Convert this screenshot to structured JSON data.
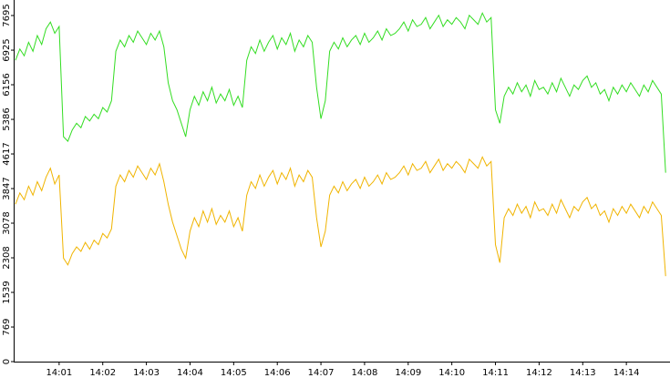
{
  "chart_data": {
    "type": "line",
    "x": [
      0,
      0.1,
      0.2,
      0.3,
      0.4,
      0.5,
      0.6,
      0.7,
      0.8,
      0.9,
      1,
      1.1,
      1.2,
      1.3,
      1.4,
      1.5,
      1.6,
      1.7,
      1.8,
      1.9,
      2,
      2.1,
      2.2,
      2.3,
      2.4,
      2.5,
      2.6,
      2.7,
      2.8,
      2.9,
      3,
      3.1,
      3.2,
      3.3,
      3.4,
      3.5,
      3.6,
      3.7,
      3.8,
      3.9,
      4,
      4.1,
      4.2,
      4.3,
      4.4,
      4.5,
      4.6,
      4.7,
      4.8,
      4.9,
      5,
      5.1,
      5.2,
      5.3,
      5.4,
      5.5,
      5.6,
      5.7,
      5.8,
      5.9,
      6,
      6.1,
      6.2,
      6.3,
      6.4,
      6.5,
      6.6,
      6.7,
      6.8,
      6.9,
      7,
      7.1,
      7.2,
      7.3,
      7.4,
      7.5,
      7.6,
      7.7,
      7.8,
      7.9,
      8,
      8.1,
      8.2,
      8.3,
      8.4,
      8.5,
      8.6,
      8.7,
      8.8,
      8.9,
      9,
      9.1,
      9.2,
      9.3,
      9.4,
      9.5,
      9.6,
      9.7,
      9.8,
      9.9,
      10,
      10.1,
      10.2,
      10.3,
      10.4,
      10.5,
      10.6,
      10.7,
      10.8,
      10.9,
      11,
      11.1,
      11.2,
      11.3,
      11.4,
      11.5,
      11.6,
      11.7,
      11.8,
      11.9,
      12,
      12.1,
      12.2,
      12.3,
      12.4,
      12.5,
      12.6,
      12.7,
      12.8,
      12.9,
      13,
      13.1,
      13.2,
      13.3,
      13.4,
      13.5,
      13.6,
      13.7,
      13.8,
      13.9,
      14,
      14.1,
      14.2,
      14.3,
      14.4,
      14.5,
      14.6,
      14.7,
      14.8,
      14.9
    ],
    "series": [
      {
        "color": "#33dd22",
        "values": [
          6700,
          6950,
          6800,
          7100,
          6900,
          7250,
          7050,
          7400,
          7550,
          7300,
          7450,
          5000,
          4900,
          5150,
          5300,
          5200,
          5450,
          5350,
          5500,
          5400,
          5650,
          5550,
          5800,
          6900,
          7150,
          7000,
          7250,
          7100,
          7350,
          7200,
          7050,
          7300,
          7150,
          7350,
          7000,
          6200,
          5800,
          5600,
          5300,
          5000,
          5600,
          5900,
          5700,
          6000,
          5800,
          6100,
          5750,
          5950,
          5800,
          6050,
          5700,
          5900,
          5650,
          6700,
          7000,
          6850,
          7150,
          6900,
          7100,
          7250,
          6950,
          7200,
          7050,
          7300,
          6900,
          7150,
          7000,
          7250,
          7100,
          6100,
          5400,
          5800,
          6900,
          7100,
          6950,
          7200,
          7000,
          7150,
          7250,
          7050,
          7300,
          7100,
          7200,
          7350,
          7150,
          7400,
          7250,
          7300,
          7400,
          7550,
          7350,
          7600,
          7450,
          7500,
          7650,
          7400,
          7550,
          7700,
          7450,
          7600,
          7500,
          7650,
          7550,
          7400,
          7700,
          7600,
          7500,
          7750,
          7550,
          7650,
          5600,
          5300,
          5900,
          6100,
          5950,
          6200,
          6000,
          6150,
          5900,
          6250,
          6050,
          6100,
          5950,
          6200,
          6000,
          6300,
          6100,
          5900,
          6150,
          6050,
          6250,
          6350,
          6100,
          6200,
          5950,
          6050,
          5800,
          6100,
          5950,
          6150,
          6000,
          6200,
          6050,
          5900,
          6150,
          6000,
          6250,
          6100,
          5950,
          4200
        ]
      },
      {
        "color": "#f0b400",
        "values": [
          3500,
          3750,
          3600,
          3900,
          3700,
          4000,
          3800,
          4100,
          4300,
          3950,
          4150,
          2300,
          2150,
          2400,
          2550,
          2450,
          2650,
          2500,
          2700,
          2600,
          2850,
          2750,
          2950,
          3900,
          4150,
          4000,
          4250,
          4100,
          4350,
          4200,
          4050,
          4300,
          4150,
          4400,
          4000,
          3500,
          3100,
          2800,
          2500,
          2300,
          2900,
          3200,
          3000,
          3350,
          3100,
          3400,
          3050,
          3250,
          3100,
          3350,
          3000,
          3200,
          2900,
          3700,
          4000,
          3850,
          4150,
          3900,
          4100,
          4250,
          3950,
          4200,
          4050,
          4300,
          3900,
          4150,
          4000,
          4250,
          4100,
          3200,
          2550,
          2900,
          3700,
          3900,
          3750,
          4000,
          3800,
          3950,
          4050,
          3850,
          4100,
          3900,
          4000,
          4150,
          3950,
          4200,
          4050,
          4100,
          4200,
          4350,
          4150,
          4400,
          4250,
          4300,
          4450,
          4200,
          4350,
          4500,
          4250,
          4400,
          4300,
          4450,
          4350,
          4200,
          4500,
          4400,
          4300,
          4550,
          4350,
          4450,
          2600,
          2200,
          3200,
          3400,
          3250,
          3500,
          3300,
          3450,
          3200,
          3550,
          3350,
          3400,
          3250,
          3500,
          3300,
          3600,
          3400,
          3200,
          3450,
          3350,
          3550,
          3650,
          3400,
          3500,
          3250,
          3350,
          3100,
          3400,
          3250,
          3450,
          3300,
          3500,
          3350,
          3200,
          3450,
          3300,
          3550,
          3400,
          3250,
          1900
        ]
      }
    ],
    "xlim": [
      0,
      15
    ],
    "xticks": [
      {
        "value": 1,
        "label": "14:01"
      },
      {
        "value": 2,
        "label": "14:02"
      },
      {
        "value": 3,
        "label": "14:03"
      },
      {
        "value": 4,
        "label": "14:04"
      },
      {
        "value": 5,
        "label": "14:05"
      },
      {
        "value": 6,
        "label": "14:06"
      },
      {
        "value": 7,
        "label": "14:07"
      },
      {
        "value": 8,
        "label": "14:08"
      },
      {
        "value": 9,
        "label": "14:09"
      },
      {
        "value": 10,
        "label": "14:10"
      },
      {
        "value": 11,
        "label": "14:11"
      },
      {
        "value": 12,
        "label": "14:12"
      },
      {
        "value": 13,
        "label": "14:13"
      },
      {
        "value": 14,
        "label": "14:14"
      }
    ],
    "ylim": [
      0,
      8040
    ],
    "yticks": [
      0,
      769,
      1539,
      2308,
      3078,
      3847,
      4617,
      5386,
      6156,
      6925,
      7695
    ]
  }
}
